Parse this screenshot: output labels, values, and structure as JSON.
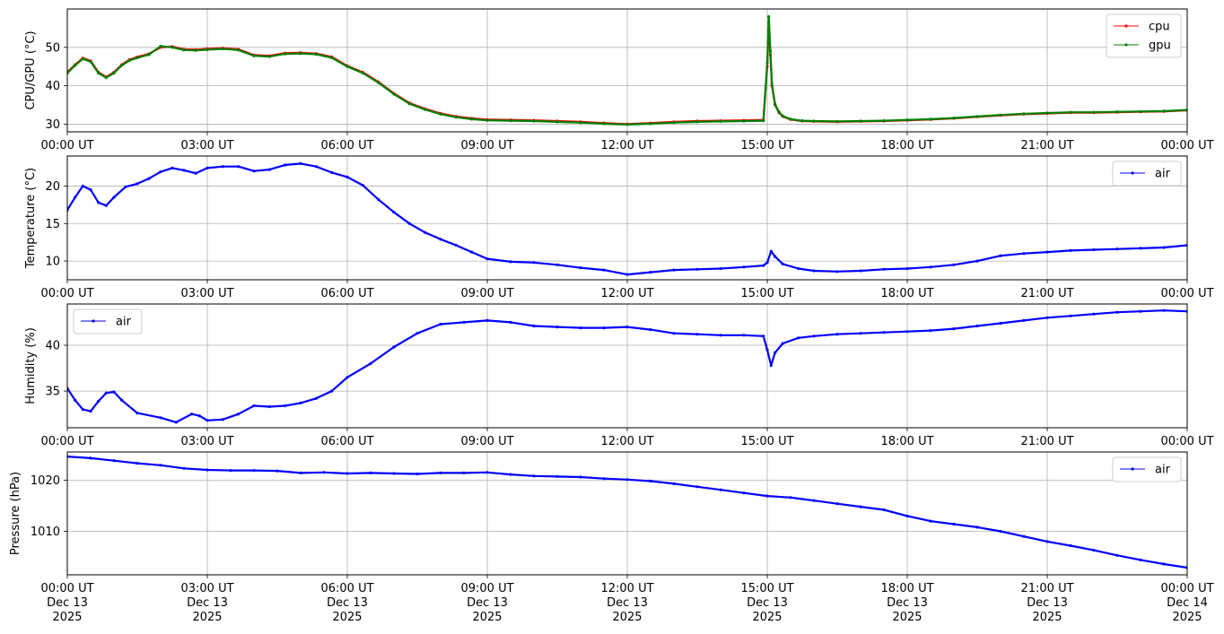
{
  "chart_data": [
    {
      "type": "line",
      "ylabel": "CPU/GPU (°C)",
      "ylim": [
        28,
        60
      ],
      "yticks": [
        30,
        40,
        50
      ],
      "xlim": [
        "2025-12-13T00:00",
        "2025-12-14T00:00"
      ],
      "xtick_labels": [
        "00:00 UT",
        "03:00 UT",
        "06:00 UT",
        "09:00 UT",
        "12:00 UT",
        "15:00 UT",
        "18:00 UT",
        "21:00 UT",
        "00:00 UT"
      ],
      "grid": true,
      "legend": "top-right",
      "x": [
        "00:00",
        "00:10",
        "00:20",
        "00:30",
        "00:40",
        "00:50",
        "01:00",
        "01:10",
        "01:20",
        "01:30",
        "01:45",
        "02:00",
        "02:15",
        "02:30",
        "02:45",
        "03:00",
        "03:20",
        "03:40",
        "04:00",
        "04:20",
        "04:40",
        "05:00",
        "05:20",
        "05:40",
        "06:00",
        "06:20",
        "06:40",
        "07:00",
        "07:20",
        "07:40",
        "08:00",
        "08:20",
        "08:40",
        "09:00",
        "09:30",
        "10:00",
        "10:30",
        "11:00",
        "11:30",
        "12:00",
        "12:30",
        "13:00",
        "13:30",
        "14:00",
        "14:30",
        "14:55",
        "15:00",
        "15:02",
        "15:04",
        "15:06",
        "15:10",
        "15:15",
        "15:20",
        "15:30",
        "15:45",
        "16:00",
        "16:30",
        "17:00",
        "17:30",
        "18:00",
        "18:30",
        "19:00",
        "19:30",
        "20:00",
        "20:30",
        "21:00",
        "21:30",
        "22:00",
        "22:30",
        "23:00",
        "23:30",
        "24:00"
      ],
      "series": [
        {
          "name": "cpu",
          "color": "#ff0000",
          "values": [
            43.5,
            45.5,
            47.2,
            46.5,
            43.5,
            42.3,
            43.5,
            45.5,
            46.8,
            47.5,
            48.3,
            50.0,
            50.2,
            49.5,
            49.4,
            49.6,
            49.8,
            49.5,
            48.0,
            47.8,
            48.5,
            48.6,
            48.4,
            47.5,
            45.2,
            43.5,
            41.0,
            38.0,
            35.5,
            34.0,
            32.8,
            32.0,
            31.5,
            31.2,
            31.1,
            31.0,
            30.8,
            30.6,
            30.3,
            30.0,
            30.3,
            30.6,
            30.8,
            30.9,
            31.0,
            31.1,
            45.0,
            56.5,
            48.0,
            40.0,
            35.0,
            33.0,
            32.0,
            31.2,
            30.8,
            30.7,
            30.6,
            30.7,
            30.8,
            31.0,
            31.2,
            31.5,
            31.9,
            32.3,
            32.6,
            32.8,
            33.0,
            33.0,
            33.1,
            33.2,
            33.3,
            33.6
          ]
        },
        {
          "name": "gpu",
          "color": "#008000",
          "values": [
            43.3,
            45.3,
            47.0,
            46.3,
            43.3,
            42.1,
            43.3,
            45.3,
            46.6,
            47.3,
            48.1,
            50.3,
            50.0,
            49.3,
            49.2,
            49.4,
            49.6,
            49.3,
            47.8,
            47.6,
            48.3,
            48.4,
            48.2,
            47.3,
            45.0,
            43.3,
            40.8,
            37.8,
            35.3,
            33.8,
            32.6,
            31.8,
            31.3,
            31.0,
            30.9,
            30.8,
            30.6,
            30.4,
            30.1,
            29.9,
            30.1,
            30.4,
            30.6,
            30.7,
            30.8,
            30.9,
            46.0,
            58.0,
            49.0,
            40.5,
            35.2,
            33.2,
            32.1,
            31.3,
            30.9,
            30.8,
            30.7,
            30.8,
            30.9,
            31.1,
            31.3,
            31.6,
            32.0,
            32.4,
            32.7,
            32.9,
            33.1,
            33.1,
            33.2,
            33.3,
            33.4,
            33.7
          ]
        }
      ]
    },
    {
      "type": "line",
      "ylabel": "Temperature (°C)",
      "ylim": [
        7.5,
        24
      ],
      "yticks": [
        10,
        15,
        20
      ],
      "xlim": [
        "2025-12-13T00:00",
        "2025-12-14T00:00"
      ],
      "xtick_labels": [
        "00:00 UT",
        "03:00 UT",
        "06:00 UT",
        "09:00 UT",
        "12:00 UT",
        "15:00 UT",
        "18:00 UT",
        "21:00 UT",
        "00:00 UT"
      ],
      "grid": true,
      "legend": "top-right",
      "x": [
        "00:00",
        "00:10",
        "00:20",
        "00:30",
        "00:40",
        "00:50",
        "01:00",
        "01:15",
        "01:30",
        "01:45",
        "02:00",
        "02:15",
        "02:30",
        "02:45",
        "03:00",
        "03:20",
        "03:40",
        "04:00",
        "04:20",
        "04:40",
        "05:00",
        "05:20",
        "05:40",
        "06:00",
        "06:20",
        "06:40",
        "07:00",
        "07:20",
        "07:40",
        "08:00",
        "08:20",
        "08:40",
        "09:00",
        "09:30",
        "10:00",
        "10:30",
        "11:00",
        "11:30",
        "12:00",
        "12:30",
        "13:00",
        "13:30",
        "14:00",
        "14:30",
        "14:55",
        "15:00",
        "15:05",
        "15:10",
        "15:20",
        "15:40",
        "16:00",
        "16:30",
        "17:00",
        "17:30",
        "18:00",
        "18:30",
        "19:00",
        "19:30",
        "20:00",
        "20:30",
        "21:00",
        "21:30",
        "22:00",
        "22:30",
        "23:00",
        "23:30",
        "24:00"
      ],
      "series": [
        {
          "name": "air",
          "color": "#0000ff",
          "values": [
            16.8,
            18.5,
            20.0,
            19.5,
            17.8,
            17.4,
            18.5,
            19.9,
            20.3,
            21.0,
            21.9,
            22.4,
            22.1,
            21.7,
            22.4,
            22.6,
            22.6,
            22.0,
            22.2,
            22.8,
            23.0,
            22.6,
            21.8,
            21.2,
            20.1,
            18.2,
            16.5,
            15.0,
            13.8,
            12.9,
            12.1,
            11.2,
            10.3,
            9.9,
            9.8,
            9.5,
            9.1,
            8.8,
            8.2,
            8.5,
            8.8,
            8.9,
            9.0,
            9.2,
            9.4,
            9.8,
            11.3,
            10.6,
            9.6,
            9.0,
            8.7,
            8.6,
            8.7,
            8.9,
            9.0,
            9.2,
            9.5,
            10.0,
            10.7,
            11.0,
            11.2,
            11.4,
            11.5,
            11.6,
            11.7,
            11.8,
            12.1
          ]
        }
      ]
    },
    {
      "type": "line",
      "ylabel": "Humidity (%)",
      "ylim": [
        31,
        44.5
      ],
      "yticks": [
        35,
        40
      ],
      "xlim": [
        "2025-12-13T00:00",
        "2025-12-14T00:00"
      ],
      "xtick_labels": [
        "00:00 UT",
        "03:00 UT",
        "06:00 UT",
        "09:00 UT",
        "12:00 UT",
        "15:00 UT",
        "18:00 UT",
        "21:00 UT",
        "00:00 UT"
      ],
      "grid": true,
      "legend": "top-left",
      "x": [
        "00:00",
        "00:10",
        "00:20",
        "00:30",
        "00:40",
        "00:50",
        "01:00",
        "01:10",
        "01:30",
        "02:00",
        "02:20",
        "02:40",
        "02:50",
        "03:00",
        "03:20",
        "03:40",
        "04:00",
        "04:20",
        "04:40",
        "05:00",
        "05:20",
        "05:40",
        "06:00",
        "06:30",
        "07:00",
        "07:30",
        "08:00",
        "08:30",
        "09:00",
        "09:30",
        "10:00",
        "10:30",
        "11:00",
        "11:30",
        "12:00",
        "12:30",
        "13:00",
        "13:30",
        "14:00",
        "14:30",
        "14:55",
        "15:00",
        "15:05",
        "15:10",
        "15:20",
        "15:40",
        "16:00",
        "16:30",
        "17:00",
        "17:30",
        "18:00",
        "18:30",
        "19:00",
        "19:30",
        "20:00",
        "20:30",
        "21:00",
        "21:30",
        "22:00",
        "22:30",
        "23:00",
        "23:30",
        "24:00"
      ],
      "series": [
        {
          "name": "air",
          "color": "#0000ff",
          "values": [
            35.3,
            34.0,
            33.0,
            32.8,
            33.9,
            34.8,
            34.9,
            34.0,
            32.6,
            32.1,
            31.6,
            32.5,
            32.3,
            31.8,
            31.9,
            32.5,
            33.4,
            33.3,
            33.4,
            33.7,
            34.2,
            35.0,
            36.5,
            38.0,
            39.8,
            41.3,
            42.3,
            42.5,
            42.7,
            42.5,
            42.1,
            42.0,
            41.9,
            41.9,
            42.0,
            41.7,
            41.3,
            41.2,
            41.1,
            41.1,
            41.0,
            39.5,
            37.8,
            39.2,
            40.2,
            40.8,
            41.0,
            41.2,
            41.3,
            41.4,
            41.5,
            41.6,
            41.8,
            42.1,
            42.4,
            42.7,
            43.0,
            43.2,
            43.4,
            43.6,
            43.7,
            43.8,
            43.7
          ]
        }
      ]
    },
    {
      "type": "line",
      "ylabel": "Pressure (hPa)",
      "ylim": [
        1001.5,
        1025.5
      ],
      "yticks": [
        1010,
        1020
      ],
      "xlim": [
        "2025-12-13T00:00",
        "2025-12-14T00:00"
      ],
      "xtick_labels": [
        [
          "00:00 UT",
          "Dec 13",
          "2025"
        ],
        [
          "03:00 UT",
          "Dec 13",
          "2025"
        ],
        [
          "06:00 UT",
          "Dec 13",
          "2025"
        ],
        [
          "09:00 UT",
          "Dec 13",
          "2025"
        ],
        [
          "12:00 UT",
          "Dec 13",
          "2025"
        ],
        [
          "15:00 UT",
          "Dec 13",
          "2025"
        ],
        [
          "18:00 UT",
          "Dec 13",
          "2025"
        ],
        [
          "21:00 UT",
          "Dec 13",
          "2025"
        ],
        [
          "00:00 UT",
          "Dec 14",
          "2025"
        ]
      ],
      "grid": true,
      "legend": "top-right",
      "x": [
        "00:00",
        "00:30",
        "01:00",
        "01:30",
        "02:00",
        "02:30",
        "03:00",
        "03:30",
        "04:00",
        "04:30",
        "05:00",
        "05:30",
        "06:00",
        "06:30",
        "07:00",
        "07:30",
        "08:00",
        "08:30",
        "09:00",
        "09:30",
        "10:00",
        "10:30",
        "11:00",
        "11:30",
        "12:00",
        "12:30",
        "13:00",
        "13:30",
        "14:00",
        "14:30",
        "15:00",
        "15:30",
        "16:00",
        "16:30",
        "17:00",
        "17:30",
        "18:00",
        "18:30",
        "19:00",
        "19:30",
        "20:00",
        "20:30",
        "21:00",
        "21:30",
        "22:00",
        "22:30",
        "23:00",
        "23:30",
        "24:00"
      ],
      "series": [
        {
          "name": "air",
          "color": "#0000ff",
          "values": [
            1024.6,
            1024.3,
            1023.8,
            1023.3,
            1022.9,
            1022.3,
            1022.0,
            1021.9,
            1021.9,
            1021.8,
            1021.4,
            1021.5,
            1021.3,
            1021.4,
            1021.3,
            1021.2,
            1021.4,
            1021.4,
            1021.5,
            1021.1,
            1020.8,
            1020.7,
            1020.6,
            1020.3,
            1020.1,
            1019.8,
            1019.3,
            1018.7,
            1018.1,
            1017.5,
            1016.9,
            1016.6,
            1016.0,
            1015.4,
            1014.8,
            1014.2,
            1013.0,
            1012.0,
            1011.4,
            1010.8,
            1010.0,
            1009.0,
            1008.0,
            1007.2,
            1006.3,
            1005.3,
            1004.4,
            1003.6,
            1002.9
          ]
        }
      ]
    }
  ]
}
